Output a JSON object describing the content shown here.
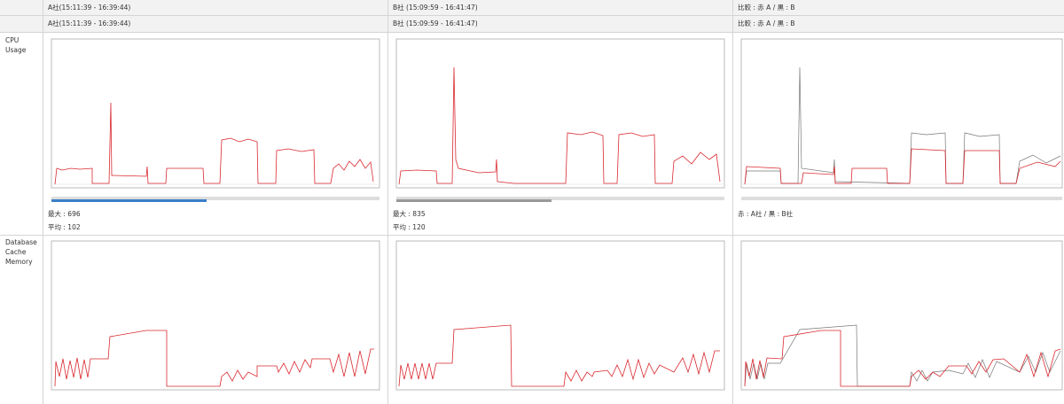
{
  "header": {
    "columns": [
      "A社(15:11:39 - 16:39:44)",
      "B社 (15:09:59 - 16:41:47)",
      "比較 : 赤 A / 黒 : B"
    ]
  },
  "subheader": {
    "columns": [
      "A社(15:11:39 - 16:39:44)",
      "B社 (15:09:59 - 16:41:47)",
      "比較 : 赤 A / 黒 : B"
    ]
  },
  "rows": [
    {
      "label": "CPU Usage",
      "stats": [
        [
          "最大 : 696",
          "平均 : 102"
        ],
        [
          "最大 : 835",
          "平均 : 120"
        ],
        [
          "赤 : A社 / 黒 : B社"
        ]
      ]
    },
    {
      "label": "Database Cache Memory"
    }
  ]
}
